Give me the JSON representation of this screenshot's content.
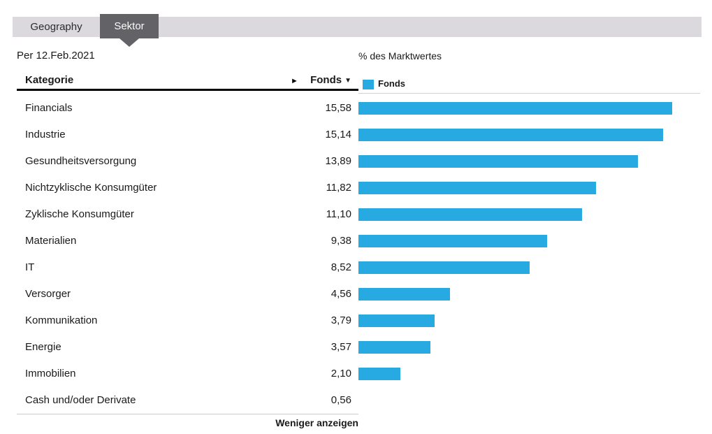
{
  "tabs": [
    {
      "label": "Geography",
      "active": false
    },
    {
      "label": "Sektor",
      "active": true
    }
  ],
  "as_of_label": "Per 12.Feb.2021",
  "table": {
    "columns": [
      "Kategorie",
      "Fonds"
    ]
  },
  "icons": {
    "column_expand": "►",
    "sort_desc": "▼"
  },
  "legend": {
    "label": "Fonds"
  },
  "footer": {
    "show_less_label": "Weniger anzeigen"
  },
  "colors": {
    "bar_blue": "#27aae1",
    "tabbar_bg": "#dbd9de",
    "active_tab_bg": "#636266",
    "text": "#1a1a1c"
  },
  "chart_data": {
    "type": "bar",
    "orientation": "horizontal",
    "title": "% des Marktwertes",
    "categories": [
      "Financials",
      "Industrie",
      "Gesundheitsversorgung",
      "Nichtzyklische Konsumgüter",
      "Zyklische Konsumgüter",
      "Materialien",
      "IT",
      "Versorger",
      "Kommunikation",
      "Energie",
      "Immobilien",
      "Cash und/oder Derivate"
    ],
    "series": [
      {
        "name": "Fonds",
        "values": [
          15.58,
          15.14,
          13.89,
          11.82,
          11.1,
          9.38,
          8.52,
          4.56,
          3.79,
          3.57,
          2.1,
          0.56
        ]
      }
    ],
    "value_labels": [
      "15,58",
      "15,14",
      "13,89",
      "11,82",
      "11,10",
      "9,38",
      "8,52",
      "4,56",
      "3,79",
      "3,57",
      "2,10",
      "0,56"
    ],
    "xlim": [
      0,
      16.6
    ],
    "bars_shown": 11,
    "grid": false,
    "legend_position": "top",
    "bar_color": "#27aae1"
  }
}
